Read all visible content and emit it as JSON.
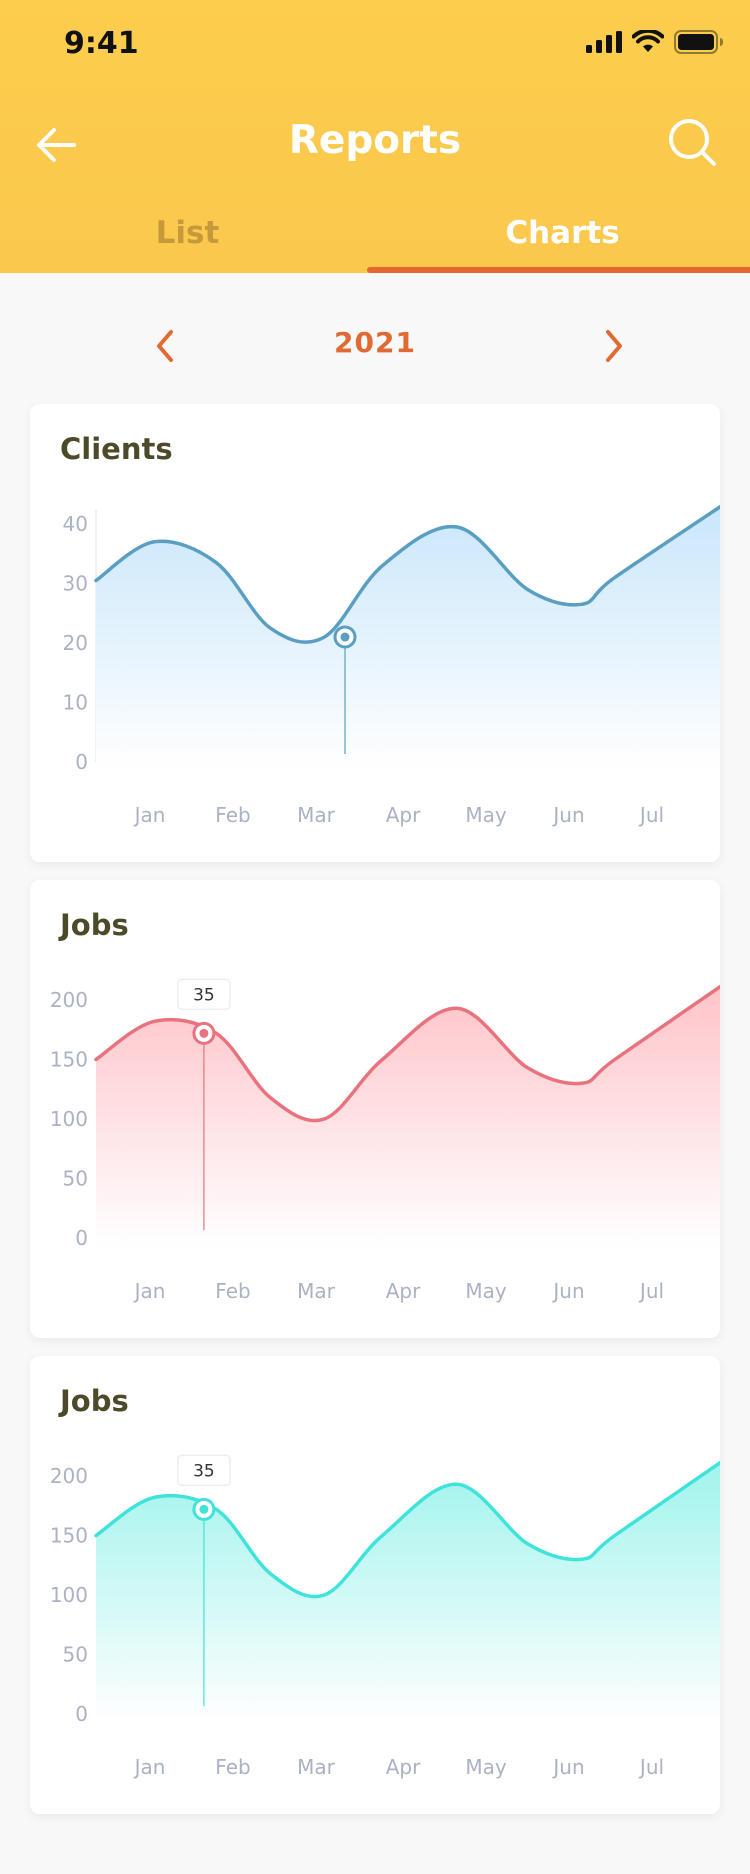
{
  "status_bar": {
    "time": "9:41"
  },
  "nav": {
    "title": "Reports"
  },
  "tabs": [
    {
      "label": "List"
    },
    {
      "label": "Charts"
    }
  ],
  "year": {
    "label": "2021"
  },
  "colors": {
    "header": "#fdcd4d",
    "accent": "#e5672f"
  },
  "chart_data": [
    {
      "type": "area",
      "title": "Clients",
      "categories": [
        "Jan",
        "Feb",
        "Mar",
        "Apr",
        "May",
        "Jun",
        "Jul"
      ],
      "yticks": [
        0,
        10,
        20,
        30,
        40
      ],
      "ylim": [
        0,
        42
      ],
      "x": [
        0,
        0.7,
        1.45,
        2.1,
        2.75,
        3.45,
        4.35,
        5.2,
        5.85,
        6.25,
        6.65
      ],
      "values": [
        30.5,
        37,
        33.5,
        22.5,
        21,
        33,
        39.5,
        29,
        26.5,
        31,
        44
      ],
      "highlight": {
        "index": 3,
        "x": 3.0,
        "y": 21
      },
      "color": "#5a9ec2",
      "grid": false
    },
    {
      "type": "area",
      "title": "Jobs",
      "categories": [
        "Jan",
        "Feb",
        "Mar",
        "Apr",
        "May",
        "Jun",
        "Jul"
      ],
      "yticks": [
        0,
        50,
        100,
        150,
        200
      ],
      "ylim": [
        0,
        215
      ],
      "x": [
        0,
        0.7,
        1.45,
        2.1,
        2.75,
        3.45,
        4.35,
        5.2,
        5.85,
        6.25,
        6.65
      ],
      "values": [
        150,
        182,
        172,
        118,
        100,
        150,
        193,
        143,
        130,
        150,
        217
      ],
      "highlight": {
        "index": 1,
        "x": 1.3,
        "y": 172,
        "label": "35"
      },
      "color": "#e8737e",
      "grid": false
    },
    {
      "type": "area",
      "title": "Jobs",
      "categories": [
        "Jan",
        "Feb",
        "Mar",
        "Apr",
        "May",
        "Jun",
        "Jul"
      ],
      "yticks": [
        0,
        50,
        100,
        150,
        200
      ],
      "ylim": [
        0,
        215
      ],
      "x": [
        0,
        0.7,
        1.45,
        2.1,
        2.75,
        3.45,
        4.35,
        5.2,
        5.85,
        6.25,
        6.65
      ],
      "values": [
        150,
        182,
        172,
        118,
        100,
        150,
        193,
        143,
        130,
        150,
        217
      ],
      "highlight": {
        "index": 1,
        "x": 1.3,
        "y": 172,
        "label": "35"
      },
      "color": "#3fe3d9",
      "grid": false
    }
  ]
}
